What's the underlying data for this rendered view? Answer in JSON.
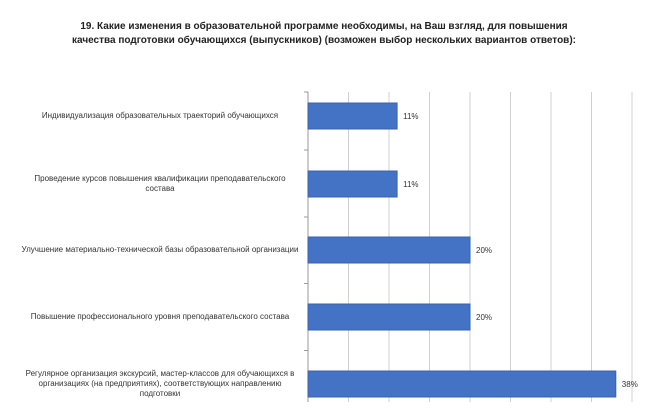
{
  "chart_data": {
    "type": "bar",
    "orientation": "horizontal",
    "title": "19. Какие изменения в образовательной программе необходимы, на Ваш взгляд, для повышения качества подготовки обучающихся (выпускников) (возможен выбор нескольких вариантов ответов):",
    "categories": [
      "Индивидуализация образовательных траекторий обучающихся",
      "Проведение курсов повышения квалификации преподавательского состава",
      "Улучшение материально-технической базы образовательной организации",
      "Повышение профессионального уровня преподавательского состава",
      "Регулярное организация экскурсий, мастер-классов для обучающихся в организациях (на предприятиях), соответствующих направлению подготовки"
    ],
    "values": [
      11,
      11,
      20,
      20,
      38
    ],
    "value_labels": [
      "11%",
      "11%",
      "20%",
      "20%",
      "38%"
    ],
    "unit": "%",
    "xlim": [
      0,
      40
    ],
    "grid": true,
    "legend": "none",
    "colors": {
      "bar": "#4472C4",
      "bar_edge": "#3a63ad",
      "grid": "#d0d0d0",
      "axis": "#9a9a9a"
    }
  }
}
